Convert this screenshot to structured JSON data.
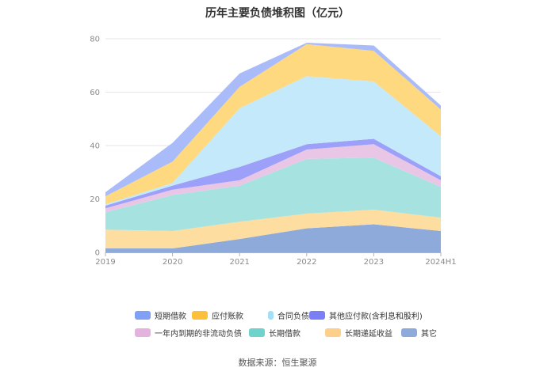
{
  "chart_data": {
    "type": "area",
    "stacked": true,
    "title": "历年主要负债堆积图（亿元）",
    "categories": [
      "2019",
      "2020",
      "2021",
      "2022",
      "2023",
      "2024H1"
    ],
    "ylim": [
      0,
      80
    ],
    "yticks": [
      0,
      20,
      40,
      60,
      80
    ],
    "grid": true,
    "legend_position": "bottom",
    "series": [
      {
        "name": "其它",
        "color": "#8eaadb",
        "values": [
          1.5,
          1.5,
          5,
          9,
          10.5,
          8
        ]
      },
      {
        "name": "长期递延收益",
        "color": "#fddda0",
        "values": [
          7,
          6.5,
          6.5,
          5.5,
          5.5,
          5
        ]
      },
      {
        "name": "长期借款",
        "color": "#a6e3e0",
        "values": [
          6.5,
          13.5,
          13.5,
          20.5,
          19.5,
          11.5
        ]
      },
      {
        "name": "一年内到期的非流动负债",
        "color": "#eac6e6",
        "values": [
          1.5,
          2,
          2,
          3.5,
          5,
          2.5
        ]
      },
      {
        "name": "其他应付款(含利息和股利)",
        "color": "#9da0f8",
        "values": [
          1,
          1.5,
          5,
          2,
          2,
          1.5
        ]
      },
      {
        "name": "合同负债",
        "color": "#c3e9fb",
        "values": [
          0.5,
          1,
          22,
          25.5,
          21.5,
          15
        ]
      },
      {
        "name": "应付账款",
        "color": "#fed980",
        "values": [
          3,
          8,
          8,
          12,
          11.5,
          10
        ]
      },
      {
        "name": "短期借款",
        "color": "#a9bcf9",
        "values": [
          1.5,
          7,
          5,
          0.5,
          2,
          1.5
        ]
      }
    ]
  },
  "legend": {
    "rows": [
      [
        {
          "label": "短期借款",
          "color": "#7fa0f4"
        },
        {
          "label": "应付账款",
          "color": "#fcc03a"
        },
        {
          "label": "合同负债",
          "color": "#a3dff7"
        },
        {
          "label": "其他应付款(含利息和股利)",
          "color": "#7b7ef4"
        }
      ],
      [
        {
          "label": "一年内到期的非流动负债",
          "color": "#e2b3df"
        },
        {
          "label": "长期借款",
          "color": "#6fd2cc"
        },
        {
          "label": "长期递延收益",
          "color": "#fccf8a"
        },
        {
          "label": "其它",
          "color": "#8eaadb"
        }
      ]
    ]
  },
  "source": "数据来源：恒生聚源"
}
